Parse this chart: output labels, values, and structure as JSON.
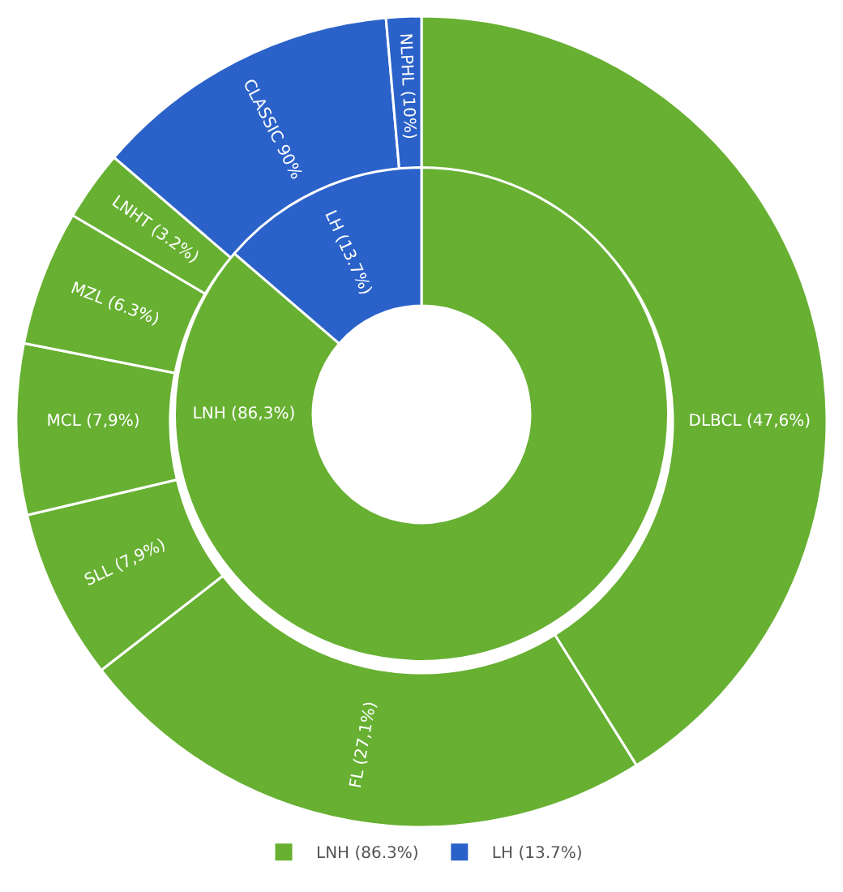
{
  "chart_data": [
    {
      "type": "donut",
      "legend": "bottom",
      "categories": [
        "LNH (86.3%)",
        "LH (13.7%)"
      ],
      "value_labels": [
        "LNH (86,3%)",
        "LH (13.7%)"
      ],
      "values": [
        86.3,
        13.7
      ],
      "colors": [
        "#67b032",
        "#2b62c9"
      ]
    },
    {
      "type": "donut",
      "categories": [
        "DLBCL (47,6%)",
        "FL (27,1%)",
        "SLL (7,9%)",
        "MCL (7,9%)",
        "MZL (6.3%)",
        "LNHT (3.2%)",
        "CLASSIC 90%",
        "NLPHL (10%)"
      ],
      "values": [
        41.1,
        23.4,
        6.8,
        6.8,
        5.4,
        2.8,
        12.3,
        1.4
      ],
      "colors": [
        "#67b032",
        "#67b032",
        "#67b032",
        "#67b032",
        "#67b032",
        "#67b032",
        "#2b62c9",
        "#2b62c9"
      ]
    }
  ]
}
